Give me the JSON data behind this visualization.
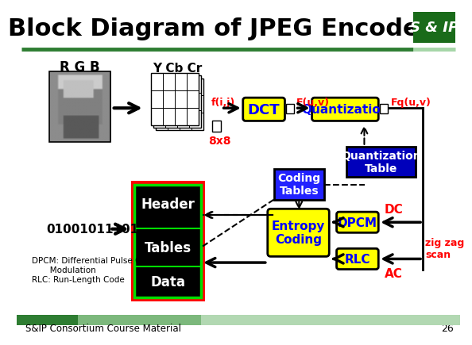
{
  "title": "Block Diagram of JPEG Encoder",
  "title_color": "#000000",
  "title_fontsize": 22,
  "bg_color": "#ffffff",
  "logo_bg": "#1a6b1a",
  "logo_text": "S & IP",
  "logo_text_color": "#ffffff",
  "footer_text": "S&IP Consortium Course Material",
  "footer_page": "26",
  "rgb_label": "R G B",
  "ycbcr_label": "Y Cb Cr",
  "fij_label": "f(i,j)",
  "fuv_label": "F(u,v)",
  "fquv_label": "Fq(u,v)",
  "label_8x8": "8x8",
  "dct_label": "DCT",
  "quant_label": "Quantization",
  "quant_table_label": "Quantization\nTable",
  "coding_tables_label": "Coding\nTables",
  "entropy_label": "Entropy\nCoding",
  "dpcm_label": "DPCM",
  "rlc_label": "RLC",
  "header_label": "Header",
  "tables_label": "Tables",
  "data_label": "Data",
  "bitstream_label": "01001011101...",
  "dpcm_note": "DPCM: Differential Pulse Code\n       Modulation\nRLC: Run-Length Code",
  "dc_label": "DC",
  "ac_label": "AC",
  "zigzag_label": "zig zag\nscan",
  "yellow": "#ffff00",
  "blue_dark": "#0000bb",
  "red": "#ff0000",
  "green_dark": "#2e7d32",
  "black": "#000000",
  "white": "#ffffff"
}
